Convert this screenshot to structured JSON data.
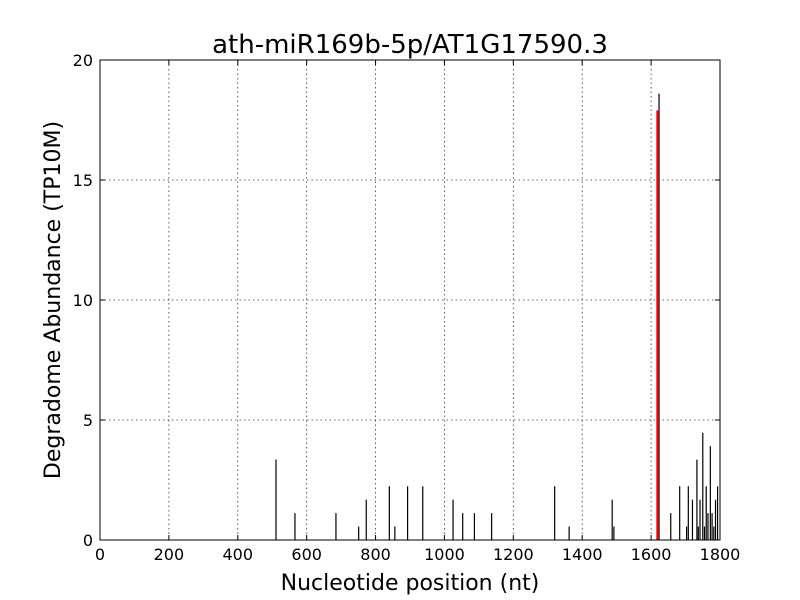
{
  "chart_data": {
    "type": "bar",
    "title": "ath-miR169b-5p/AT1G17590.3",
    "xlabel": "Nucleotide position (nt)",
    "ylabel": "Degradome Abundance (TP10M)",
    "xlim": [
      0,
      1800
    ],
    "ylim": [
      0,
      20
    ],
    "xticks": [
      0,
      200,
      400,
      600,
      800,
      1000,
      1200,
      1400,
      1600,
      1800
    ],
    "yticks": [
      0,
      5,
      10,
      15,
      20
    ],
    "grid": true,
    "colors": {
      "series": "#000000",
      "target": "#ff0000"
    },
    "series": [
      {
        "values": [
          [
            511,
            3.35
          ],
          [
            566,
            1.12
          ],
          [
            685,
            1.12
          ],
          [
            751,
            0.56
          ],
          [
            773,
            1.68
          ],
          [
            840,
            2.24
          ],
          [
            856,
            0.56
          ],
          [
            893,
            2.24
          ],
          [
            937,
            2.24
          ],
          [
            1025,
            1.68
          ],
          [
            1053,
            1.12
          ],
          [
            1087,
            1.12
          ],
          [
            1137,
            1.12
          ],
          [
            1320,
            2.24
          ],
          [
            1362,
            0.56
          ],
          [
            1487,
            1.68
          ],
          [
            1492,
            0.56
          ],
          [
            1623,
            18.6
          ],
          [
            1657,
            1.12
          ],
          [
            1683,
            2.24
          ],
          [
            1703,
            0.56
          ],
          [
            1708,
            2.24
          ],
          [
            1720,
            1.68
          ],
          [
            1733,
            3.35
          ],
          [
            1737,
            0.56
          ],
          [
            1742,
            1.68
          ],
          [
            1750,
            4.47
          ],
          [
            1755,
            0.56
          ],
          [
            1760,
            2.24
          ],
          [
            1765,
            1.12
          ],
          [
            1772,
            3.91
          ],
          [
            1777,
            1.12
          ],
          [
            1782,
            0.56
          ],
          [
            1787,
            1.68
          ],
          [
            1793,
            2.24
          ]
        ]
      },
      {
        "values": [
          [
            1618,
            17.9
          ]
        ]
      }
    ]
  }
}
